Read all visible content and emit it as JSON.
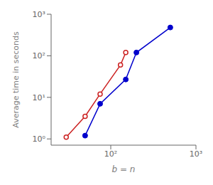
{
  "chart_data": {
    "type": "line",
    "xlabel": "b = n",
    "ylabel": "Average time in seconds",
    "log": true,
    "grid": false,
    "xlim": [
      19.952623149688797,
      1000
    ],
    "ylim": [
      0.7079457843841379,
      1000
    ],
    "xticks": [
      {
        "value": 100,
        "label": "10²"
      },
      {
        "value": 1000,
        "label": "10³"
      }
    ],
    "yticks": [
      {
        "value": 1,
        "label": "10⁰"
      },
      {
        "value": 10,
        "label": "10¹"
      },
      {
        "value": 100,
        "label": "10²"
      },
      {
        "value": 1000,
        "label": "10³"
      }
    ],
    "series": [
      {
        "color": "#0000cc",
        "marker": "filled",
        "x": [
          50,
          75,
          150,
          200,
          500
        ],
        "values": [
          1.2,
          7.0,
          27.0,
          120.0,
          480.0
        ]
      },
      {
        "color": "#cc2222",
        "marker": "open",
        "x": [
          30,
          50,
          75,
          130,
          150
        ],
        "values": [
          1.1,
          3.5,
          12.0,
          60.0,
          120.0
        ]
      }
    ]
  }
}
